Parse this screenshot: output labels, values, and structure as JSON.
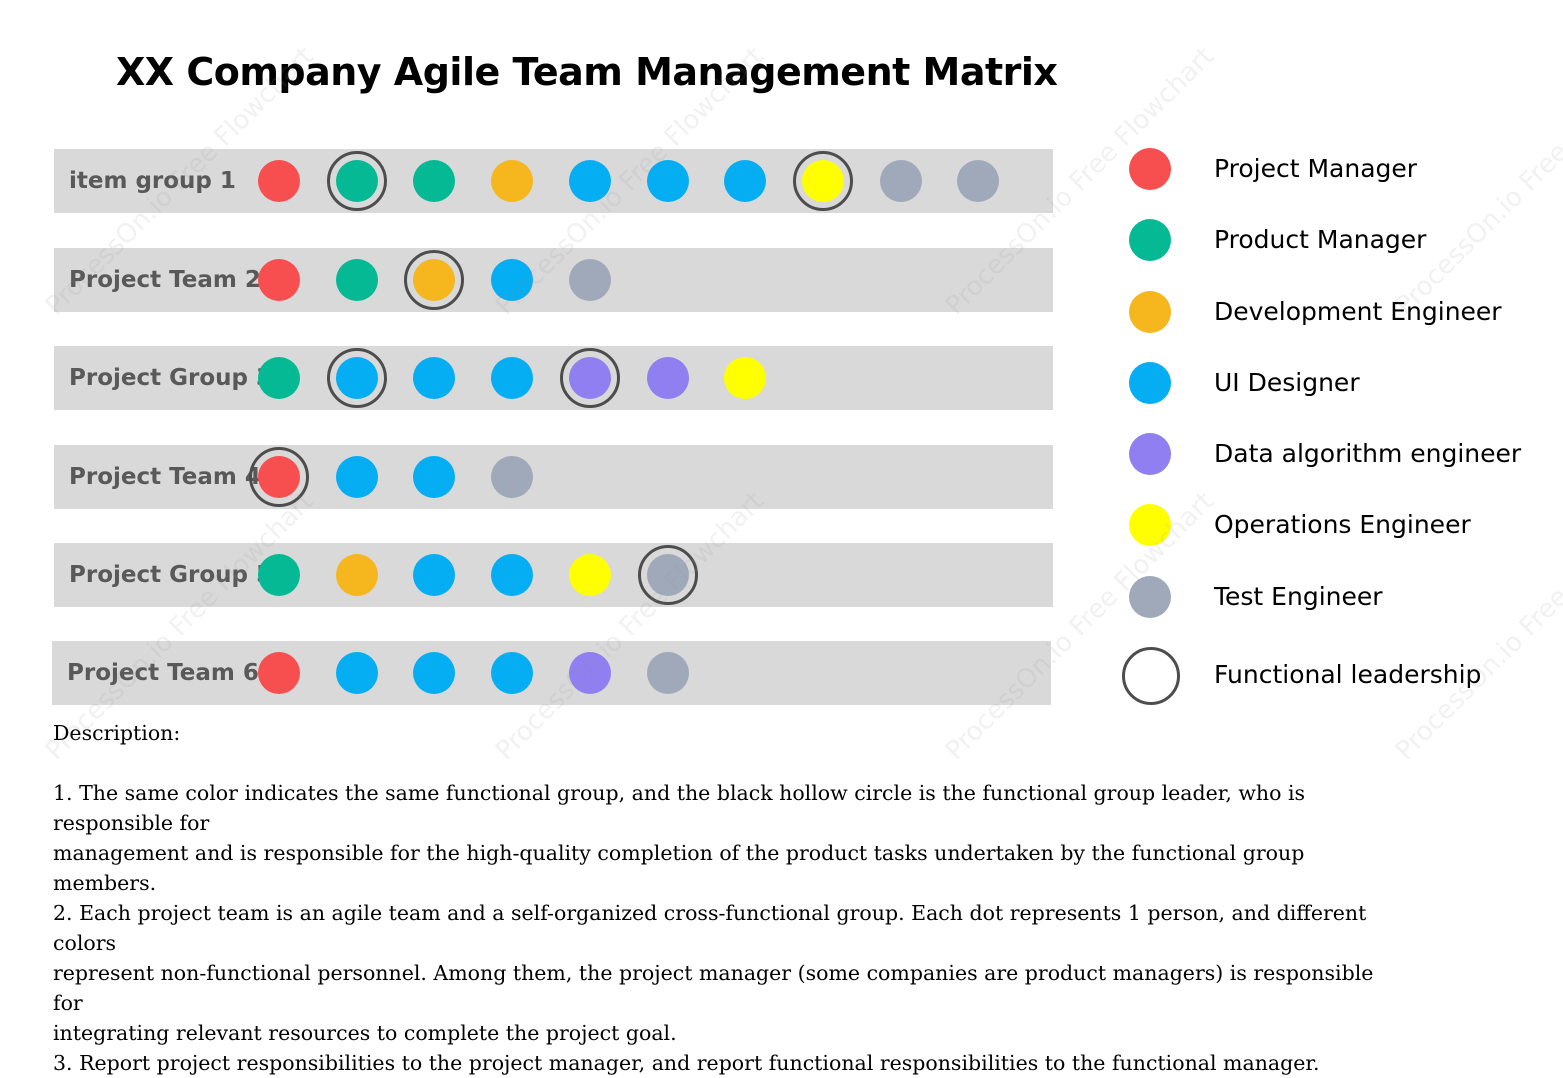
{
  "title": "XX Company Agile Team Management Matrix",
  "roles": {
    "pm": {
      "label": "Project Manager",
      "color": "#f74f4f"
    },
    "prod": {
      "label": "Product Manager",
      "color": "#05b994"
    },
    "dev": {
      "label": "Development Engineer",
      "color": "#f5b61e"
    },
    "ui": {
      "label": "UI Designer",
      "color": "#05adf3"
    },
    "data": {
      "label": "Data algorithm engineer",
      "color": "#8f7ff0"
    },
    "ops": {
      "label": "Operations Engineer",
      "color": "#ffff00"
    },
    "test": {
      "label": "Test Engineer",
      "color": "#a0a9ba"
    }
  },
  "legend": {
    "items": [
      "pm",
      "prod",
      "dev",
      "ui",
      "data",
      "ops",
      "test"
    ],
    "leadership_label": "Functional leadership"
  },
  "groups": [
    {
      "label": "item group 1",
      "members": [
        "pm",
        "prod",
        "prod",
        "dev",
        "ui",
        "ui",
        "ui",
        "ops",
        "test",
        "test"
      ],
      "leaders": [
        1,
        7
      ]
    },
    {
      "label": "Project Team 2",
      "members": [
        "pm",
        "prod",
        "dev",
        "ui",
        "test"
      ],
      "leaders": [
        2
      ]
    },
    {
      "label": "Project Group 3",
      "members": [
        "prod",
        "ui",
        "ui",
        "ui",
        "data",
        "data",
        "ops"
      ],
      "leaders": [
        1,
        4
      ]
    },
    {
      "label": "Project Team 4",
      "members": [
        "pm",
        "ui",
        "ui",
        "test"
      ],
      "leaders": [
        0
      ]
    },
    {
      "label": "Project Group 5",
      "members": [
        "prod",
        "dev",
        "ui",
        "ui",
        "ops",
        "test"
      ],
      "leaders": [
        5
      ]
    },
    {
      "label": "Project Team 6",
      "members": [
        "pm",
        "ui",
        "ui",
        "ui",
        "data",
        "test"
      ],
      "leaders": []
    }
  ],
  "description": {
    "heading": "Description:",
    "lines": [
      "1. The same color indicates the same functional group, and the black hollow circle is the functional group leader, who is responsible for",
      "management and is responsible for the high-quality completion of the product tasks undertaken by the functional group members.",
      "2. Each project team is an agile team and a self-organized cross-functional group. Each dot represents 1 person, and different colors",
      "represent non-functional personnel. Among them, the project manager (some companies are product managers) is responsible for",
      "integrating relevant resources to complete the project goal.",
      "3. Report project responsibilities to the project manager, and report functional responsibilities to the functional manager."
    ]
  },
  "watermark": "ProcessOn.io Free Flowchart"
}
